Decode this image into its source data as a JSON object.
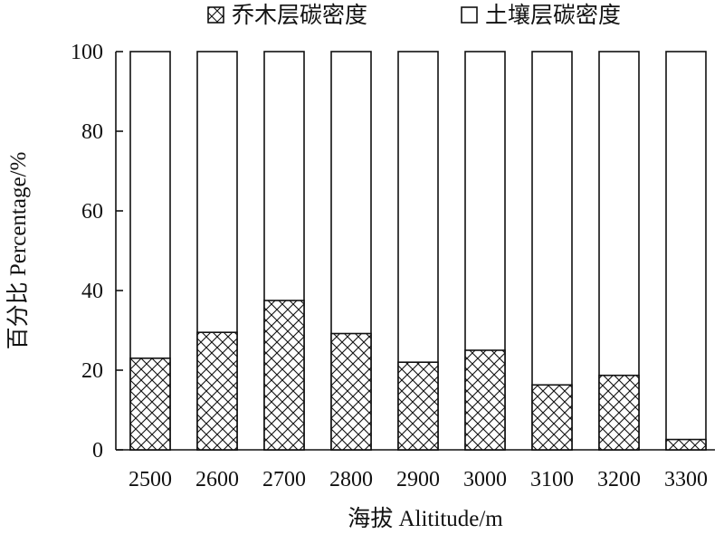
{
  "chart_data": {
    "type": "bar",
    "stacked": true,
    "categories": [
      "2500",
      "2600",
      "2700",
      "2800",
      "2900",
      "3000",
      "3100",
      "3200",
      "3300"
    ],
    "series": [
      {
        "name": "乔木层碳密度",
        "pattern": "crosshatch",
        "values": [
          23,
          29.5,
          37.5,
          29.2,
          22,
          25,
          16.3,
          18.7,
          2.6
        ]
      },
      {
        "name": "土壤层碳密度",
        "pattern": "none",
        "values": [
          77,
          70.5,
          62.5,
          70.8,
          78,
          75,
          83.7,
          81.3,
          97.4
        ]
      }
    ],
    "xlabel": "海拔 Alititude/m",
    "ylabel": "百分比 Percentage/%",
    "ylim": [
      0,
      100
    ],
    "yticks": [
      "0",
      "20",
      "40",
      "60",
      "80",
      "100"
    ],
    "grid": false,
    "legend_position": "top",
    "colors": {
      "ink": "#111111",
      "fill": "#ffffff"
    }
  }
}
